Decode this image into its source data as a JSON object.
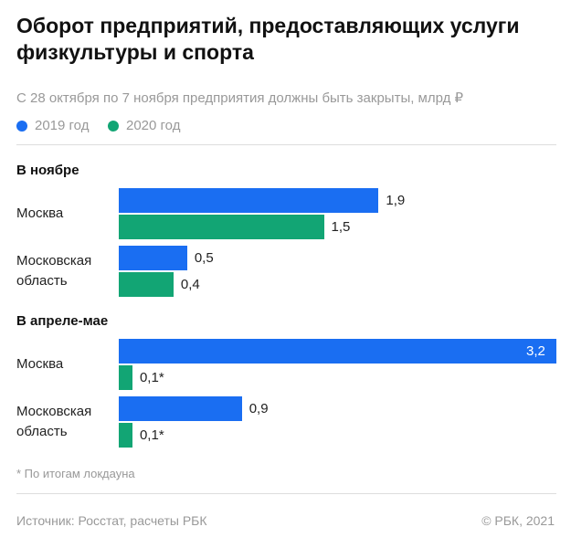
{
  "header": {
    "title": "Оборот предприятий, предоставляющих услуги физкультуры и спорта",
    "subtitle": "С 28 октября по 7 ноября предприятия должны быть закрыты, млрд ₽"
  },
  "chart_data": [
    {
      "type": "bar",
      "orientation": "horizontal",
      "title": "В ноябре",
      "categories": [
        "Москва",
        "Московская область"
      ],
      "series": [
        {
          "name": "2019 год",
          "color": "#1a6ef2",
          "values": [
            1.9,
            0.5
          ],
          "value_labels": [
            "1,9",
            "0,5"
          ]
        },
        {
          "name": "2020 год",
          "color": "#12a574",
          "values": [
            1.5,
            0.4
          ],
          "value_labels": [
            "1,5",
            "0,4"
          ]
        }
      ]
    },
    {
      "type": "bar",
      "orientation": "horizontal",
      "title": "В апреле-мае",
      "categories": [
        "Москва",
        "Московская область"
      ],
      "series": [
        {
          "name": "2019 год",
          "color": "#1a6ef2",
          "values": [
            3.2,
            0.9
          ],
          "value_labels": [
            "3,2",
            "0,9"
          ]
        },
        {
          "name": "2020 год",
          "color": "#12a574",
          "values": [
            0.1,
            0.1
          ],
          "value_labels": [
            "0,1*",
            "0,1*"
          ]
        }
      ]
    }
  ],
  "footnote": "* По итогам локдауна",
  "source": "Источник: Росстат, расчеты РБК",
  "copyright": "© РБК, 2021"
}
